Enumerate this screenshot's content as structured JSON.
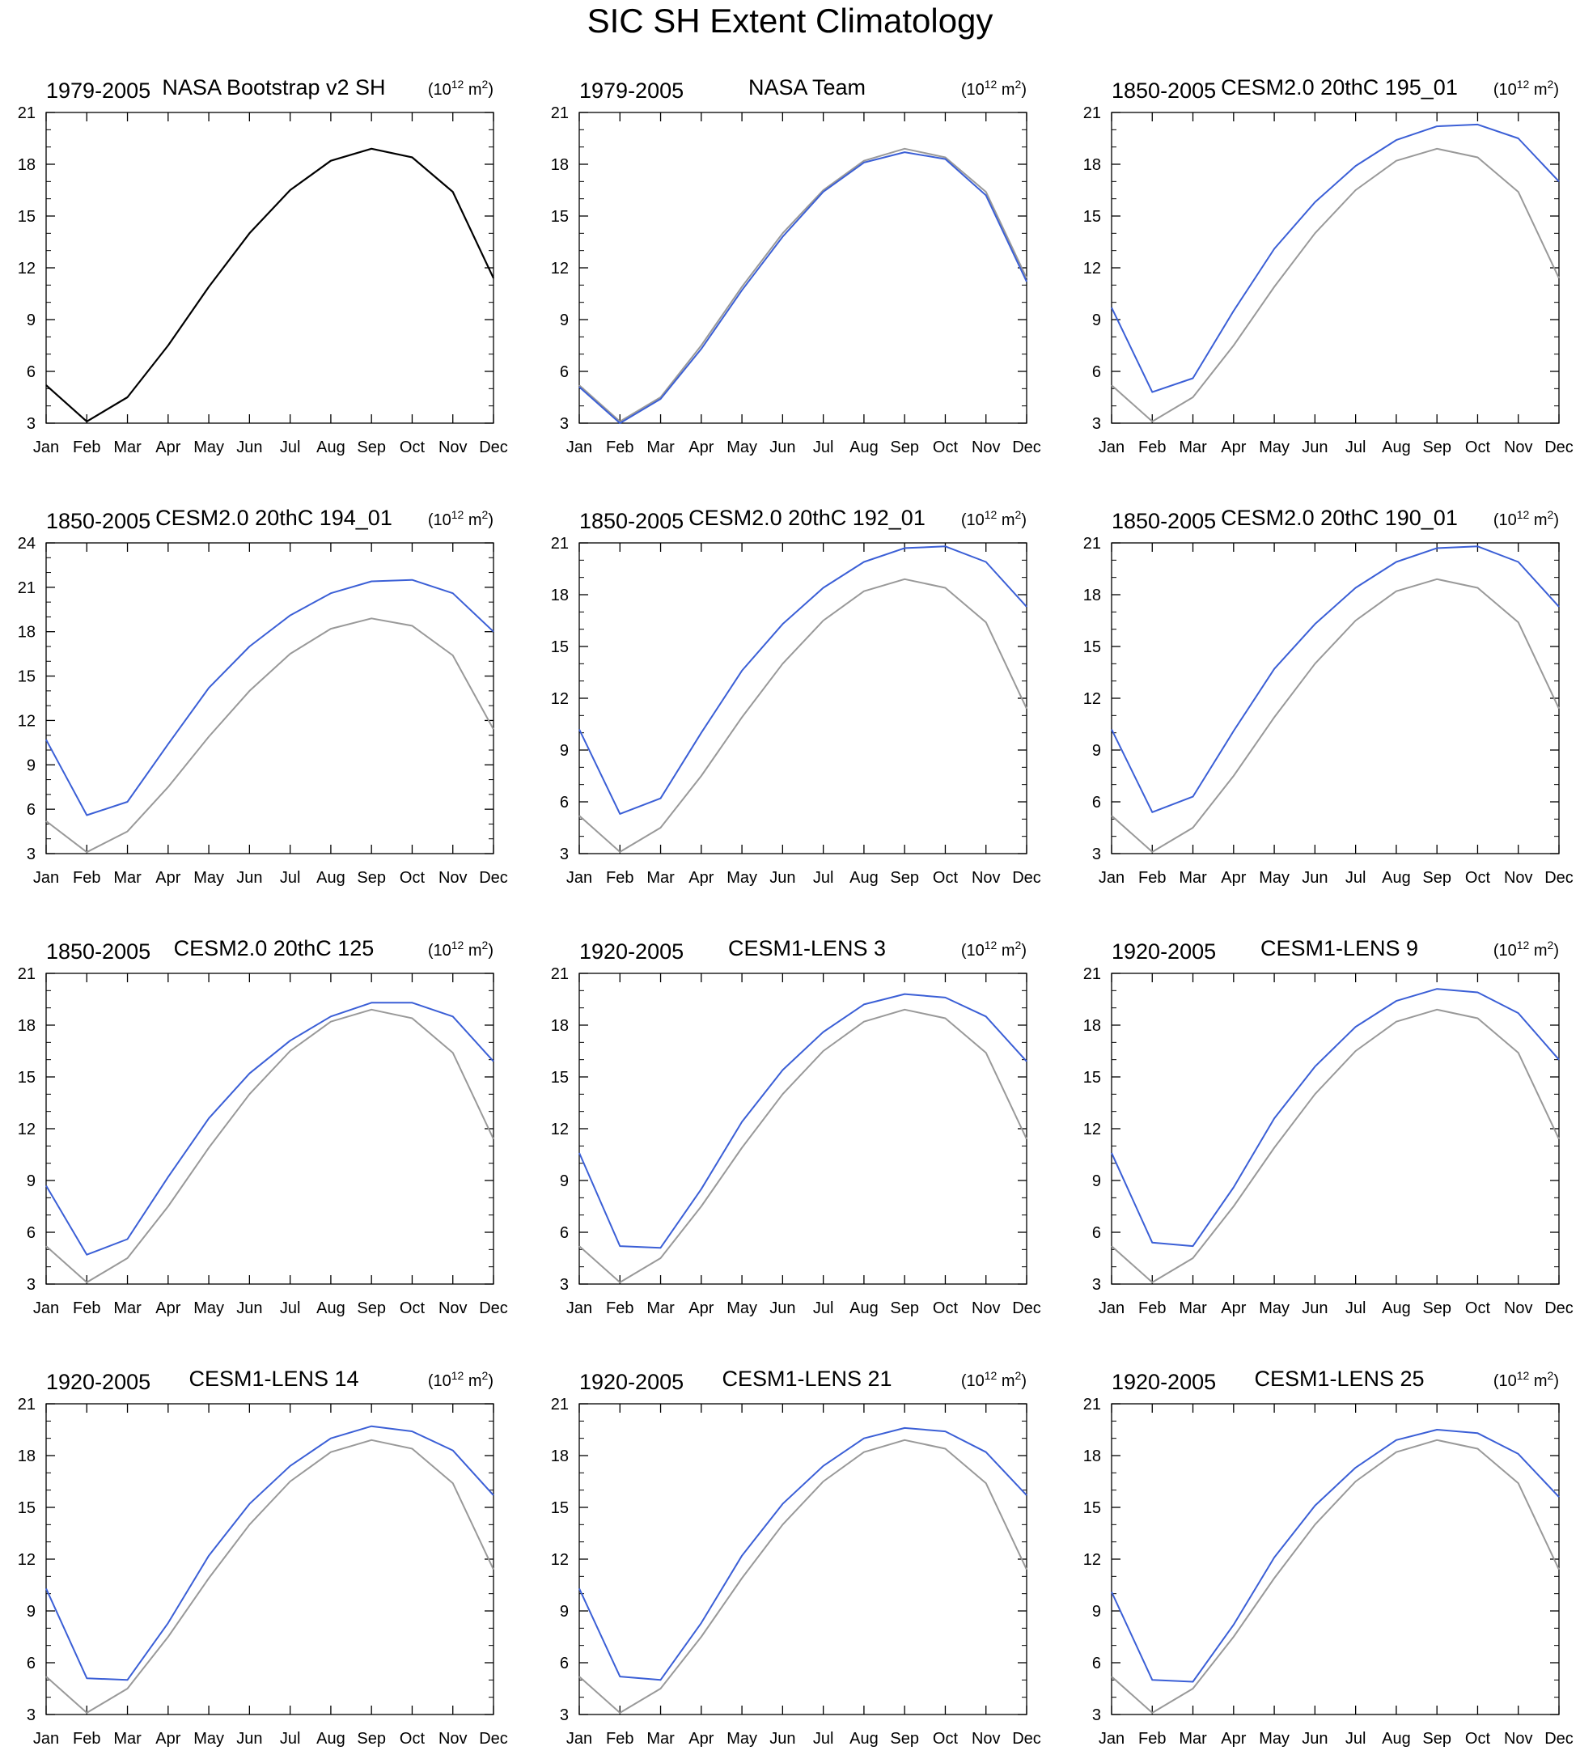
{
  "title": "SIC SH Extent Climatology",
  "months": [
    "Jan",
    "Feb",
    "Mar",
    "Apr",
    "May",
    "Jun",
    "Jul",
    "Aug",
    "Sep",
    "Oct",
    "Nov",
    "Dec"
  ],
  "unit": {
    "base": "(10",
    "exp": "12",
    "mid": " m",
    "exp2": "2",
    "close": ")"
  },
  "colors": {
    "observed": "#999999",
    "model": "#3b5fd6",
    "reference_black": "#000000"
  },
  "chart_data": [
    {
      "type": "line",
      "period": "1979-2005",
      "name": "NASA Bootstrap v2 SH",
      "ylim": [
        3,
        21
      ],
      "yticks": [
        3,
        6,
        9,
        12,
        15,
        18,
        21
      ],
      "series": [
        {
          "role": "reference",
          "values": [
            5.2,
            3.1,
            4.5,
            7.5,
            10.9,
            14.0,
            16.5,
            18.2,
            18.9,
            18.4,
            16.4,
            11.4
          ]
        }
      ]
    },
    {
      "type": "line",
      "period": "1979-2005",
      "name": "NASA Team",
      "ylim": [
        3,
        21
      ],
      "yticks": [
        3,
        6,
        9,
        12,
        15,
        18,
        21
      ],
      "series": [
        {
          "role": "observed",
          "values": [
            5.2,
            3.1,
            4.5,
            7.5,
            10.9,
            14.0,
            16.5,
            18.2,
            18.9,
            18.4,
            16.4,
            11.4
          ]
        },
        {
          "role": "model",
          "values": [
            5.1,
            3.0,
            4.4,
            7.3,
            10.7,
            13.8,
            16.4,
            18.1,
            18.7,
            18.3,
            16.2,
            11.2
          ]
        }
      ]
    },
    {
      "type": "line",
      "period": "1850-2005",
      "name": "CESM2.0 20thC 195_01",
      "ylim": [
        3,
        21
      ],
      "yticks": [
        3,
        6,
        9,
        12,
        15,
        18,
        21
      ],
      "series": [
        {
          "role": "observed",
          "values": [
            5.2,
            3.1,
            4.5,
            7.5,
            10.9,
            14.0,
            16.5,
            18.2,
            18.9,
            18.4,
            16.4,
            11.4
          ]
        },
        {
          "role": "model",
          "values": [
            9.7,
            4.8,
            5.6,
            9.5,
            13.1,
            15.8,
            17.9,
            19.4,
            20.2,
            20.3,
            19.5,
            17.0
          ]
        }
      ]
    },
    {
      "type": "line",
      "period": "1850-2005",
      "name": "CESM2.0 20thC 194_01",
      "ylim": [
        3,
        24
      ],
      "yticks": [
        3,
        6,
        9,
        12,
        15,
        18,
        21,
        24
      ],
      "series": [
        {
          "role": "observed",
          "values": [
            5.2,
            3.1,
            4.5,
            7.5,
            10.9,
            14.0,
            16.5,
            18.2,
            18.9,
            18.4,
            16.4,
            11.4
          ]
        },
        {
          "role": "model",
          "values": [
            10.7,
            5.6,
            6.5,
            10.4,
            14.2,
            17.0,
            19.1,
            20.6,
            21.4,
            21.5,
            20.6,
            18.0
          ]
        }
      ]
    },
    {
      "type": "line",
      "period": "1850-2005",
      "name": "CESM2.0 20thC 192_01",
      "ylim": [
        3,
        21
      ],
      "yticks": [
        3,
        6,
        9,
        12,
        15,
        18,
        21
      ],
      "series": [
        {
          "role": "observed",
          "values": [
            5.2,
            3.1,
            4.5,
            7.5,
            10.9,
            14.0,
            16.5,
            18.2,
            18.9,
            18.4,
            16.4,
            11.4
          ]
        },
        {
          "role": "model",
          "values": [
            10.2,
            5.3,
            6.2,
            10.0,
            13.6,
            16.3,
            18.4,
            19.9,
            20.7,
            20.8,
            19.9,
            17.3
          ]
        }
      ]
    },
    {
      "type": "line",
      "period": "1850-2005",
      "name": "CESM2.0 20thC 190_01",
      "ylim": [
        3,
        21
      ],
      "yticks": [
        3,
        6,
        9,
        12,
        15,
        18,
        21
      ],
      "series": [
        {
          "role": "observed",
          "values": [
            5.2,
            3.1,
            4.5,
            7.5,
            10.9,
            14.0,
            16.5,
            18.2,
            18.9,
            18.4,
            16.4,
            11.4
          ]
        },
        {
          "role": "model",
          "values": [
            10.2,
            5.4,
            6.3,
            10.1,
            13.7,
            16.3,
            18.4,
            19.9,
            20.7,
            20.8,
            19.9,
            17.3
          ]
        }
      ]
    },
    {
      "type": "line",
      "period": "1850-2005",
      "name": "CESM2.0 20thC 125",
      "ylim": [
        3,
        21
      ],
      "yticks": [
        3,
        6,
        9,
        12,
        15,
        18,
        21
      ],
      "series": [
        {
          "role": "observed",
          "values": [
            5.2,
            3.1,
            4.5,
            7.5,
            10.9,
            14.0,
            16.5,
            18.2,
            18.9,
            18.4,
            16.4,
            11.4
          ]
        },
        {
          "role": "model",
          "values": [
            8.7,
            4.7,
            5.6,
            9.2,
            12.6,
            15.2,
            17.1,
            18.5,
            19.3,
            19.3,
            18.5,
            15.9
          ]
        }
      ]
    },
    {
      "type": "line",
      "period": "1920-2005",
      "name": "CESM1-LENS 3",
      "ylim": [
        3,
        21
      ],
      "yticks": [
        3,
        6,
        9,
        12,
        15,
        18,
        21
      ],
      "series": [
        {
          "role": "observed",
          "values": [
            5.2,
            3.1,
            4.5,
            7.5,
            10.9,
            14.0,
            16.5,
            18.2,
            18.9,
            18.4,
            16.4,
            11.4
          ]
        },
        {
          "role": "model",
          "values": [
            10.6,
            5.2,
            5.1,
            8.5,
            12.4,
            15.4,
            17.6,
            19.2,
            19.8,
            19.6,
            18.5,
            15.9
          ]
        }
      ]
    },
    {
      "type": "line",
      "period": "1920-2005",
      "name": "CESM1-LENS 9",
      "ylim": [
        3,
        21
      ],
      "yticks": [
        3,
        6,
        9,
        12,
        15,
        18,
        21
      ],
      "series": [
        {
          "role": "observed",
          "values": [
            5.2,
            3.1,
            4.5,
            7.5,
            10.9,
            14.0,
            16.5,
            18.2,
            18.9,
            18.4,
            16.4,
            11.4
          ]
        },
        {
          "role": "model",
          "values": [
            10.6,
            5.4,
            5.2,
            8.6,
            12.6,
            15.6,
            17.9,
            19.4,
            20.1,
            19.9,
            18.7,
            16.0
          ]
        }
      ]
    },
    {
      "type": "line",
      "period": "1920-2005",
      "name": "CESM1-LENS 14",
      "ylim": [
        3,
        21
      ],
      "yticks": [
        3,
        6,
        9,
        12,
        15,
        18,
        21
      ],
      "series": [
        {
          "role": "observed",
          "values": [
            5.2,
            3.1,
            4.5,
            7.5,
            10.9,
            14.0,
            16.5,
            18.2,
            18.9,
            18.4,
            16.4,
            11.4
          ]
        },
        {
          "role": "model",
          "values": [
            10.3,
            5.1,
            5.0,
            8.3,
            12.2,
            15.2,
            17.4,
            19.0,
            19.7,
            19.4,
            18.3,
            15.7
          ]
        }
      ]
    },
    {
      "type": "line",
      "period": "1920-2005",
      "name": "CESM1-LENS 21",
      "ylim": [
        3,
        21
      ],
      "yticks": [
        3,
        6,
        9,
        12,
        15,
        18,
        21
      ],
      "series": [
        {
          "role": "observed",
          "values": [
            5.2,
            3.1,
            4.5,
            7.5,
            10.9,
            14.0,
            16.5,
            18.2,
            18.9,
            18.4,
            16.4,
            11.4
          ]
        },
        {
          "role": "model",
          "values": [
            10.3,
            5.2,
            5.0,
            8.3,
            12.2,
            15.2,
            17.4,
            19.0,
            19.6,
            19.4,
            18.2,
            15.7
          ]
        }
      ]
    },
    {
      "type": "line",
      "period": "1920-2005",
      "name": "CESM1-LENS 25",
      "ylim": [
        3,
        21
      ],
      "yticks": [
        3,
        6,
        9,
        12,
        15,
        18,
        21
      ],
      "series": [
        {
          "role": "observed",
          "values": [
            5.2,
            3.1,
            4.5,
            7.5,
            10.9,
            14.0,
            16.5,
            18.2,
            18.9,
            18.4,
            16.4,
            11.4
          ]
        },
        {
          "role": "model",
          "values": [
            10.1,
            5.0,
            4.9,
            8.2,
            12.1,
            15.1,
            17.3,
            18.9,
            19.5,
            19.3,
            18.1,
            15.6
          ]
        }
      ]
    }
  ]
}
